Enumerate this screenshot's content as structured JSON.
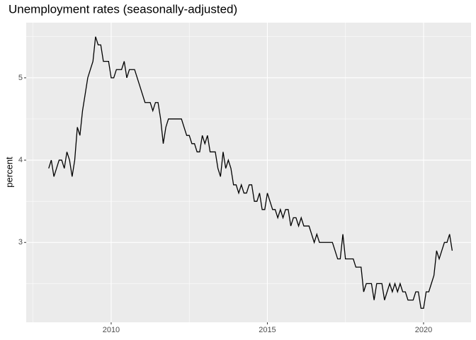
{
  "chart_data": {
    "type": "line",
    "title": "Unemployment rates (seasonally-adjusted)",
    "y_label": "percent",
    "color": "#000000",
    "grid": true,
    "xlim": [
      2007.28,
      2021.52
    ],
    "ylim": [
      2.03,
      5.67
    ],
    "xticks": [
      2010,
      2015,
      2020
    ],
    "yticks": [
      3,
      4,
      5
    ],
    "x": [
      2008,
      2008.083,
      2008.167,
      2008.25,
      2008.333,
      2008.417,
      2008.5,
      2008.583,
      2008.667,
      2008.75,
      2008.833,
      2008.917,
      2009,
      2009.083,
      2009.167,
      2009.25,
      2009.333,
      2009.417,
      2009.5,
      2009.583,
      2009.667,
      2009.75,
      2009.833,
      2009.917,
      2010,
      2010.083,
      2010.167,
      2010.25,
      2010.333,
      2010.417,
      2010.5,
      2010.583,
      2010.667,
      2010.75,
      2010.833,
      2010.917,
      2011,
      2011.083,
      2011.167,
      2011.25,
      2011.333,
      2011.417,
      2011.5,
      2011.583,
      2011.667,
      2011.75,
      2011.833,
      2011.917,
      2012,
      2012.083,
      2012.167,
      2012.25,
      2012.333,
      2012.417,
      2012.5,
      2012.583,
      2012.667,
      2012.75,
      2012.833,
      2012.917,
      2013,
      2013.083,
      2013.167,
      2013.25,
      2013.333,
      2013.417,
      2013.5,
      2013.583,
      2013.667,
      2013.75,
      2013.833,
      2013.917,
      2014,
      2014.083,
      2014.167,
      2014.25,
      2014.333,
      2014.417,
      2014.5,
      2014.583,
      2014.667,
      2014.75,
      2014.833,
      2014.917,
      2015,
      2015.083,
      2015.167,
      2015.25,
      2015.333,
      2015.417,
      2015.5,
      2015.583,
      2015.667,
      2015.75,
      2015.833,
      2015.917,
      2016,
      2016.083,
      2016.167,
      2016.25,
      2016.333,
      2016.417,
      2016.5,
      2016.583,
      2016.667,
      2016.75,
      2016.833,
      2016.917,
      2017,
      2017.083,
      2017.167,
      2017.25,
      2017.333,
      2017.417,
      2017.5,
      2017.583,
      2017.667,
      2017.75,
      2017.833,
      2017.917,
      2018,
      2018.083,
      2018.167,
      2018.25,
      2018.333,
      2018.417,
      2018.5,
      2018.583,
      2018.667,
      2018.75,
      2018.833,
      2018.917,
      2019,
      2019.083,
      2019.167,
      2019.25,
      2019.333,
      2019.417,
      2019.5,
      2019.583,
      2019.667,
      2019.75,
      2019.833,
      2019.917,
      2020,
      2020.083,
      2020.167,
      2020.25,
      2020.333,
      2020.417,
      2020.5,
      2020.583,
      2020.667,
      2020.75,
      2020.833,
      2020.917
    ],
    "values": [
      3.9,
      4.0,
      3.8,
      3.9,
      4.0,
      4.0,
      3.9,
      4.1,
      4.0,
      3.8,
      4.0,
      4.4,
      4.3,
      4.6,
      4.8,
      5.0,
      5.1,
      5.2,
      5.5,
      5.4,
      5.4,
      5.2,
      5.2,
      5.2,
      5.0,
      5.0,
      5.1,
      5.1,
      5.1,
      5.2,
      5.0,
      5.1,
      5.1,
      5.1,
      5.0,
      4.9,
      4.8,
      4.7,
      4.7,
      4.7,
      4.6,
      4.7,
      4.7,
      4.5,
      4.2,
      4.4,
      4.5,
      4.5,
      4.5,
      4.5,
      4.5,
      4.5,
      4.4,
      4.3,
      4.3,
      4.2,
      4.2,
      4.1,
      4.1,
      4.3,
      4.2,
      4.3,
      4.1,
      4.1,
      4.1,
      3.9,
      3.8,
      4.1,
      3.9,
      4.0,
      3.9,
      3.7,
      3.7,
      3.6,
      3.7,
      3.6,
      3.6,
      3.7,
      3.7,
      3.5,
      3.5,
      3.6,
      3.4,
      3.4,
      3.6,
      3.5,
      3.4,
      3.4,
      3.3,
      3.4,
      3.3,
      3.4,
      3.4,
      3.2,
      3.3,
      3.3,
      3.2,
      3.3,
      3.2,
      3.2,
      3.2,
      3.1,
      3.0,
      3.1,
      3.0,
      3.0,
      3.0,
      3.0,
      3.0,
      3.0,
      2.9,
      2.8,
      2.8,
      3.1,
      2.8,
      2.8,
      2.8,
      2.8,
      2.7,
      2.7,
      2.7,
      2.4,
      2.5,
      2.5,
      2.5,
      2.3,
      2.5,
      2.5,
      2.5,
      2.3,
      2.4,
      2.5,
      2.4,
      2.5,
      2.4,
      2.5,
      2.4,
      2.4,
      2.3,
      2.3,
      2.3,
      2.4,
      2.4,
      2.2,
      2.2,
      2.4,
      2.4,
      2.5,
      2.6,
      2.9,
      2.8,
      2.9,
      3.0,
      3.0,
      3.1,
      2.9
    ]
  }
}
